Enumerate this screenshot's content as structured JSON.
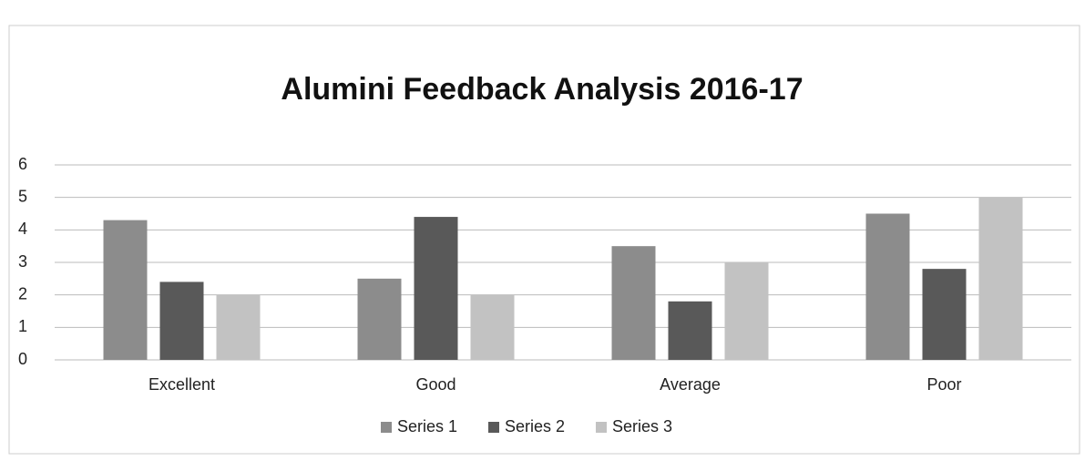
{
  "chart_data": {
    "type": "bar",
    "title": "Alumini Feedback  Analysis 2016-17",
    "categories": [
      "Excellent",
      "Good",
      "Average",
      "Poor"
    ],
    "series": [
      {
        "name": "Series 1",
        "color": "#8c8c8c",
        "values": [
          4.3,
          2.5,
          3.5,
          4.5
        ]
      },
      {
        "name": "Series 2",
        "color": "#595959",
        "values": [
          2.4,
          4.4,
          1.8,
          2.8
        ]
      },
      {
        "name": "Series 3",
        "color": "#c2c2c2",
        "values": [
          2,
          2,
          3,
          5
        ]
      }
    ],
    "ylim": [
      0,
      6
    ],
    "yticks": [
      0,
      1,
      2,
      3,
      4,
      5,
      6
    ],
    "grid": true,
    "legend": "bottom"
  }
}
